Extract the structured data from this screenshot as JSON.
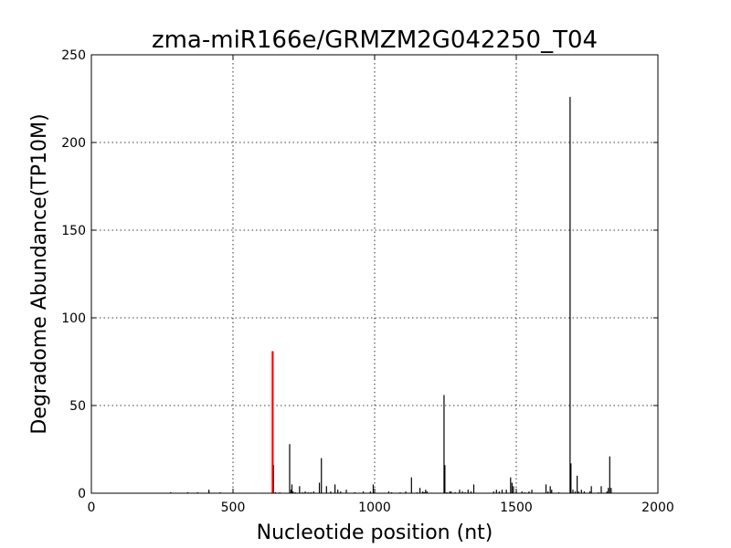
{
  "chart_data": {
    "type": "bar",
    "title": "zma-miR166e/GRMZM2G042250_T04",
    "xlabel": "Nucleotide position (nt)",
    "ylabel": "Degradome Abundance(TP10M)",
    "xlim": [
      0,
      2000
    ],
    "ylim": [
      0,
      250
    ],
    "xticks": [
      0,
      500,
      1000,
      1500,
      2000
    ],
    "yticks": [
      0,
      50,
      100,
      150,
      200,
      250
    ],
    "grid": true,
    "colors": {
      "background": "#ffffff",
      "bars": "#000000",
      "highlight": "#ff0000"
    },
    "highlight": {
      "x": 640,
      "value": 81
    },
    "series": [
      {
        "x": [
          280,
          340,
          375,
          415,
          455,
          643,
          650,
          665,
          700,
          705,
          708,
          712,
          720,
          735,
          745,
          755,
          765,
          775,
          785,
          805,
          812,
          830,
          845,
          860,
          870,
          880,
          900,
          930,
          960,
          985,
          995,
          1000,
          1050,
          1060,
          1090,
          1110,
          1130,
          1150,
          1160,
          1170,
          1175,
          1180,
          1185,
          1245,
          1248,
          1255,
          1265,
          1270,
          1285,
          1300,
          1310,
          1320,
          1330,
          1340,
          1350,
          1420,
          1430,
          1440,
          1450,
          1465,
          1480,
          1485,
          1490,
          1500,
          1520,
          1530,
          1545,
          1555,
          1605,
          1612,
          1620,
          1625,
          1650,
          1690,
          1693,
          1700,
          1708,
          1715,
          1720,
          1730,
          1740,
          1760,
          1765,
          1790,
          1800,
          1820,
          1825,
          1830,
          1835
        ],
        "values": [
          0.5,
          0.5,
          0.5,
          2,
          0.5,
          16,
          0.5,
          0.5,
          28,
          2,
          5,
          1,
          0.5,
          4,
          0.5,
          1,
          0.5,
          0.5,
          1,
          6,
          20,
          4,
          1,
          5,
          2,
          1,
          2,
          0.5,
          1,
          1,
          5,
          0.5,
          1,
          0.5,
          0.5,
          1,
          9,
          0.5,
          3,
          1,
          0.5,
          2,
          1,
          56,
          16,
          0.5,
          1,
          1,
          0.5,
          2,
          1,
          0.5,
          2,
          1,
          5,
          1,
          2,
          1,
          2,
          2,
          9,
          6,
          4,
          1,
          1,
          0.5,
          1,
          2,
          5,
          1,
          4,
          2,
          0.5,
          226,
          17,
          2,
          1,
          10,
          1,
          2,
          1,
          1,
          4,
          0.5,
          4,
          1,
          3,
          21,
          3
        ]
      }
    ]
  }
}
